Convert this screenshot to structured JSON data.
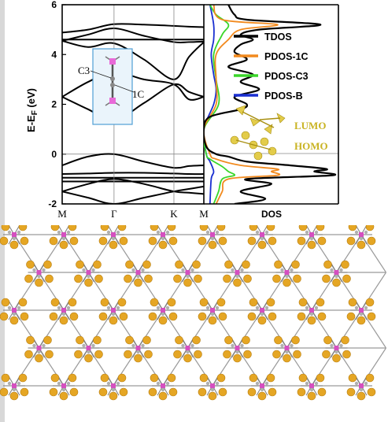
{
  "chart_data": [
    {
      "type": "line",
      "panel": "band-structure",
      "ylabel": "E-E_F (eV)",
      "ylim": [
        -2,
        6
      ],
      "yticks": [
        -2,
        0,
        2,
        4,
        6
      ],
      "ytick_labels": [
        "-2",
        "0",
        "2",
        "4",
        "6"
      ],
      "xticks": [
        "M",
        "Γ",
        "K",
        "M"
      ],
      "k_positions": [
        0,
        1,
        2.155,
        2.732
      ],
      "fermi_level": 0,
      "bands": [
        {
          "k": [
            0,
            0.5,
            1,
            1.577,
            2.155,
            2.444,
            2.732
          ],
          "e": [
            4.88,
            5.0,
            5.22,
            5.2,
            5.15,
            5.12,
            5.1
          ]
        },
        {
          "k": [
            0,
            0.5,
            1,
            1.577,
            2.155,
            2.444,
            2.732
          ],
          "e": [
            4.6,
            4.6,
            4.6,
            4.6,
            4.6,
            4.6,
            4.6
          ]
        },
        {
          "k": [
            0,
            0.5,
            1,
            1.577,
            2.155,
            2.444,
            2.732
          ],
          "e": [
            4.55,
            4.8,
            5.05,
            4.75,
            4.5,
            4.5,
            4.52
          ]
        },
        {
          "k": [
            0,
            0.5,
            1,
            1.577,
            2.155,
            2.444,
            2.732
          ],
          "e": [
            4.55,
            4.3,
            4.45,
            3.8,
            3.0,
            3.9,
            4.5
          ]
        },
        {
          "k": [
            0,
            0.5,
            1,
            1.577,
            2.155,
            2.444,
            2.732
          ],
          "e": [
            2.3,
            1.8,
            1.35,
            2.05,
            2.8,
            2.5,
            2.3
          ]
        },
        {
          "k": [
            0,
            0.5,
            1,
            1.577,
            2.155,
            2.444,
            2.732
          ],
          "e": [
            2.3,
            2.9,
            3.3,
            3.0,
            2.8,
            2.2,
            2.3
          ]
        },
        {
          "k": [
            0,
            0.5,
            1,
            1.577,
            2.155,
            2.444,
            2.732
          ],
          "e": [
            -0.45,
            -0.1,
            0.0,
            -0.3,
            -0.55,
            -0.48,
            -0.45
          ]
        },
        {
          "k": [
            0,
            0.5,
            1,
            1.577,
            2.155,
            2.444,
            2.732
          ],
          "e": [
            -0.8,
            -0.78,
            -0.75,
            -0.75,
            -0.78,
            -0.8,
            -0.8
          ]
        },
        {
          "k": [
            0,
            0.5,
            1,
            1.577,
            2.155,
            2.444,
            2.732
          ],
          "e": [
            -0.95,
            -0.95,
            -0.95,
            -0.95,
            -0.95,
            -0.95,
            -0.95
          ]
        },
        {
          "k": [
            0,
            0.5,
            1,
            1.577,
            2.155,
            2.444,
            2.732
          ],
          "e": [
            -1.1,
            -1.1,
            -1.1,
            -1.1,
            -1.1,
            -1.1,
            -1.1
          ]
        },
        {
          "k": [
            0,
            0.5,
            1,
            1.577,
            2.155,
            2.444,
            2.732
          ],
          "e": [
            -1.5,
            -1.2,
            -1.0,
            -1.2,
            -1.5,
            -1.55,
            -1.6
          ]
        },
        {
          "k": [
            0,
            0.5,
            1,
            1.577,
            2.155,
            2.444,
            2.732
          ],
          "e": [
            -1.5,
            -1.75,
            -2.0,
            -1.75,
            -1.5,
            -1.4,
            -1.3
          ]
        }
      ],
      "inset_labels": [
        "C3",
        "1C"
      ]
    },
    {
      "type": "line",
      "panel": "density-of-states",
      "xlabel": "DOS",
      "ylim": [
        -2,
        6
      ],
      "series": [
        {
          "name": "TDOS",
          "color": "#000000",
          "e": [
            -2,
            -1.8,
            -1.5,
            -1.2,
            -1.0,
            -0.85,
            -0.7,
            -0.6,
            -0.45,
            -0.3,
            -0.1,
            0.0,
            0.3,
            1.0,
            1.5,
            1.8,
            2.0,
            2.3,
            2.6,
            2.9,
            3.2,
            3.5,
            3.8,
            4.1,
            4.4,
            4.6,
            4.8,
            5.0,
            5.2,
            5.4,
            5.6,
            6.0
          ],
          "dos": [
            0.25,
            0.5,
            0.3,
            0.55,
            0.35,
            1.05,
            0.9,
            1.0,
            0.7,
            0.35,
            0.2,
            0.1,
            0.02,
            0.0,
            0.05,
            0.3,
            0.35,
            0.25,
            0.45,
            0.3,
            0.4,
            0.2,
            0.35,
            0.25,
            0.3,
            0.4,
            0.3,
            0.45,
            0.95,
            0.35,
            0.25,
            0.2
          ]
        },
        {
          "name": "PDOS-1C",
          "color": "#f28a1e",
          "e": [
            -2,
            -1.5,
            -1.0,
            -0.85,
            -0.7,
            -0.6,
            -0.45,
            -0.2,
            0.0,
            1.0,
            2.0,
            3.0,
            4.0,
            4.6,
            5.0,
            5.2,
            5.4,
            6.0
          ],
          "dos": [
            0.1,
            0.15,
            0.2,
            0.6,
            0.55,
            0.6,
            0.3,
            0.1,
            0.05,
            0.0,
            0.1,
            0.1,
            0.1,
            0.2,
            0.3,
            0.6,
            0.15,
            0.08
          ]
        },
        {
          "name": "PDOS-C3",
          "color": "#3ad62a",
          "e": [
            -2,
            -1.5,
            -1.0,
            -0.85,
            -0.7,
            -0.5,
            -0.2,
            0.0,
            1.0,
            2.0,
            3.0,
            4.0,
            4.8,
            5.2,
            5.6,
            6.0
          ],
          "dos": [
            0.08,
            0.12,
            0.15,
            0.25,
            0.2,
            0.15,
            0.05,
            0.02,
            0.0,
            0.12,
            0.1,
            0.08,
            0.15,
            0.2,
            0.1,
            0.05
          ]
        },
        {
          "name": "PDOS-B",
          "color": "#1a2fd1",
          "e": [
            -2,
            -1.0,
            -0.7,
            -0.3,
            0.0,
            1.0,
            2.0,
            2.6,
            3.2,
            4.0,
            4.6,
            5.2,
            6.0
          ],
          "dos": [
            0.05,
            0.06,
            0.08,
            0.05,
            0.02,
            0.0,
            0.08,
            0.1,
            0.08,
            0.06,
            0.08,
            0.08,
            0.05
          ]
        }
      ],
      "orbital_labels": [
        "LUMO",
        "HOMO"
      ],
      "orbital_label_color": "#c9b322"
    }
  ],
  "structure": {
    "rows": 5,
    "cols": 8,
    "gold_color": "#e5a624",
    "magenta_color": "#d54fc0",
    "gray_color": "#9a9a9a"
  }
}
